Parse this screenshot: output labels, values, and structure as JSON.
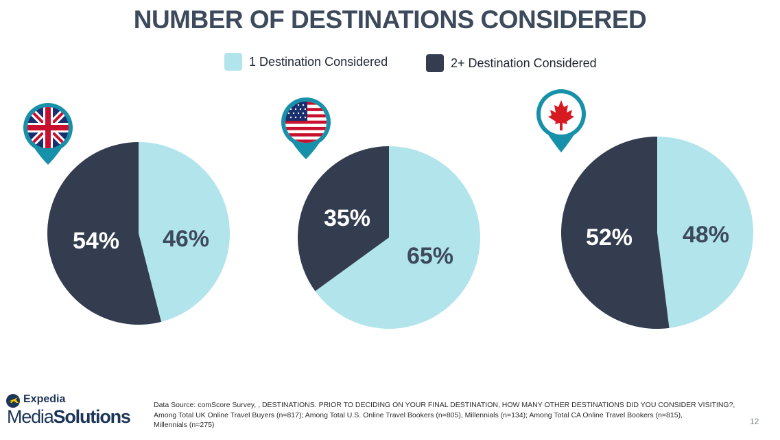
{
  "title": "NUMBER OF DESTINATIONS CONSIDERED",
  "legend": [
    {
      "label": "1 Destination Considered",
      "color": "#b2e4ec"
    },
    {
      "label": "2+ Destination Considered",
      "color": "#333d4f"
    }
  ],
  "chart_data": [
    {
      "type": "pie",
      "flag_icon": "uk-flag-pin-icon",
      "slices": [
        {
          "label": "1 Destination Considered",
          "value": 46,
          "text": "46%"
        },
        {
          "label": "2+ Destination Considered",
          "value": 54,
          "text": "54%"
        }
      ]
    },
    {
      "type": "pie",
      "flag_icon": "us-flag-pin-icon",
      "slices": [
        {
          "label": "1 Destination Considered",
          "value": 65,
          "text": "65%"
        },
        {
          "label": "2+ Destination Considered",
          "value": 35,
          "text": "35%"
        }
      ]
    },
    {
      "type": "pie",
      "flag_icon": "canada-flag-pin-icon",
      "slices": [
        {
          "label": "1 Destination Considered",
          "value": 48,
          "text": "48%"
        },
        {
          "label": "2+ Destination Considered",
          "value": 52,
          "text": "52%"
        }
      ]
    }
  ],
  "source_lines": [
    "Data Source: comScore Survey, , DESTINATIONS. PRIOR TO DECIDING ON YOUR FINAL DESTINATION, HOW MANY OTHER DESTINATIONS DID YOU CONSIDER VISITING?,",
    "Among Total UK Online Travel Buyers (n=817); Among Total U.S. Online Travel Bookers (n=805), Millennials (n=134); Among Total CA Online Travel Bookers (n=815),",
    "Millennials (n=275)"
  ],
  "logo": {
    "top": "Expedia",
    "bottom_light": "Media",
    "bottom_bold": "Solutions"
  },
  "page_number": "12"
}
